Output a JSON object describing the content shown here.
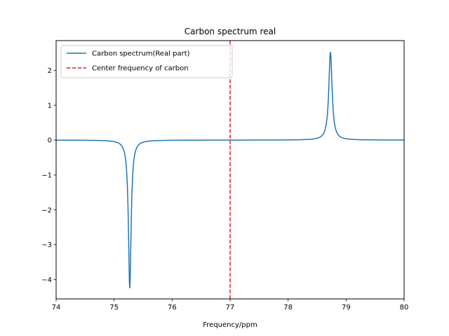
{
  "chart_data": {
    "type": "line",
    "title": "Carbon spectrum real",
    "xlabel": "Frequency/ppm",
    "ylabel": "",
    "xlim": [
      74,
      80
    ],
    "ylim": [
      -4.55,
      2.85
    ],
    "xticks": [
      74,
      75,
      76,
      77,
      78,
      79,
      80
    ],
    "xtick_labels": [
      "74",
      "75",
      "76",
      "77",
      "78",
      "79",
      "80"
    ],
    "yticks": [
      -4,
      -3,
      -2,
      -1,
      0,
      1,
      2
    ],
    "ytick_labels": [
      "−4",
      "−3",
      "−2",
      "−1",
      "0",
      "1",
      "2"
    ],
    "grid": false,
    "legend": "top-left",
    "series": [
      {
        "name": "Carbon spectrum(Real part)",
        "color": "#1f77b4",
        "style": "solid",
        "peaks": [
          {
            "center": 75.27,
            "height": -4.25,
            "halfwidth": 0.028
          },
          {
            "center": 78.73,
            "height": 2.52,
            "halfwidth": 0.034
          }
        ],
        "x_samples": [
          74.0,
          74.5,
          75.0,
          75.1,
          75.2,
          75.27,
          75.35,
          75.5,
          76.0,
          77.0,
          78.0,
          78.5,
          78.6,
          78.73,
          78.85,
          79.0,
          79.5,
          80.0
        ],
        "y_samples": [
          -0.02,
          -0.04,
          -0.1,
          -0.25,
          -1.0,
          -4.25,
          -0.6,
          -0.15,
          -0.05,
          -0.01,
          0.03,
          0.15,
          0.4,
          2.52,
          0.3,
          0.08,
          0.02,
          0.01
        ]
      },
      {
        "name": "Center frequency of carbon",
        "color": "#d62728",
        "style": "dashed",
        "vline_x": 77
      }
    ]
  }
}
